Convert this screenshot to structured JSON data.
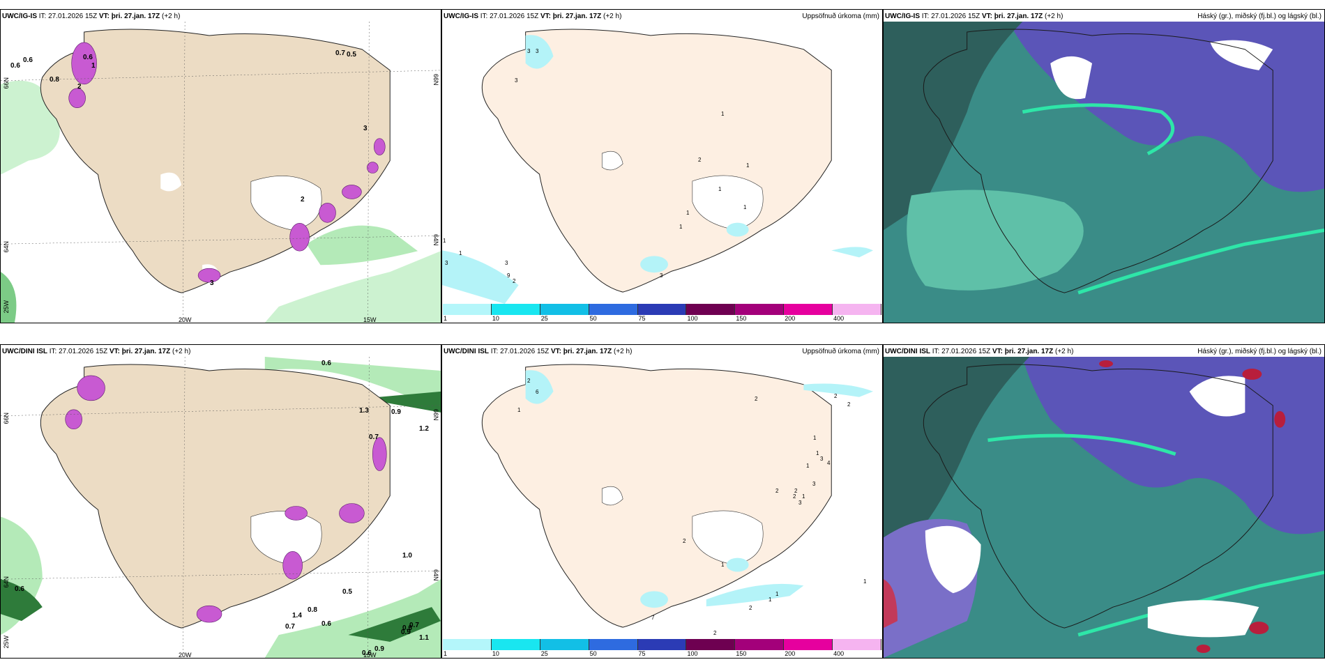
{
  "rows": [
    {
      "model": "UWC/IG-IS",
      "it_label": "IT:",
      "it_value": "27.01.2026 15Z",
      "vt_label": "VT:",
      "vt_value": "þri. 27.jan. 17Z",
      "lead": "(+2 h)",
      "wind_labels": [
        "0.6",
        "0.6",
        "0.8",
        "0.7",
        "0.5",
        "0.6",
        "1",
        "2",
        "3",
        "2",
        "3"
      ],
      "precip_labels": [
        "3",
        "3",
        "3",
        "1",
        "1",
        "1",
        "3",
        "3",
        "9",
        "2",
        "1",
        "2",
        "1",
        "1",
        "1",
        "1",
        "3"
      ]
    },
    {
      "model": "UWC/DINI ISL",
      "it_label": "IT:",
      "it_value": "27.01.2026 15Z",
      "vt_label": "VT:",
      "vt_value": "þri. 27.jan. 17Z",
      "lead": "(+2 h)",
      "wind_labels": [
        "0.6",
        "1.3",
        "0.9",
        "1.2",
        "0.7",
        "1.0",
        "0.5",
        "0.8",
        "0.6",
        "0.7",
        "0.7",
        "0.6",
        "0.9",
        "1.1",
        "0.7",
        "0.6",
        "0.9",
        "0.6",
        "0.7",
        "1.4"
      ],
      "precip_labels": [
        "2",
        "6",
        "1",
        "2",
        "2",
        "2",
        "1",
        "1",
        "3",
        "4",
        "1",
        "3",
        "2",
        "2",
        "1",
        "3",
        "7",
        "1",
        "2",
        "2",
        "2",
        "2",
        "1",
        "1",
        "1"
      ]
    }
  ],
  "precip_title": "Uppsöfnuð úrkoma (mm)",
  "cloud_title": "Háský (gr.), miðský (fj.bl.) og lágský (bl.)",
  "axes": {
    "lat_66": "66N",
    "lat_64": "64N",
    "lat_25w": "25W",
    "lon_20w": "20W",
    "lon_15w": "15W",
    "lat_66_right": "66N",
    "lat_64_right": "64N"
  },
  "colorbar": {
    "ticks": [
      "1",
      "10",
      "25",
      "50",
      "75",
      "100",
      "150",
      "200",
      "400"
    ],
    "colors": [
      "#b4f6fa",
      "#19e6f0",
      "#12bfe6",
      "#2e6be0",
      "#2b3bb5",
      "#6e0051",
      "#a3007a",
      "#e6009e",
      "#f5b4f0"
    ]
  },
  "colors": {
    "land": "#ecdcc4",
    "land_light": "#fdefe2",
    "wind_green": "#9ee8a8",
    "wind_dark": "#2e7b3a",
    "precip_magenta": "#c85ad2",
    "precip_cyan": "#b4f3f8",
    "cloud_teal": "#3a8c87",
    "cloud_blue": "#5b55b8",
    "cloud_mint": "#2ee6a8"
  }
}
